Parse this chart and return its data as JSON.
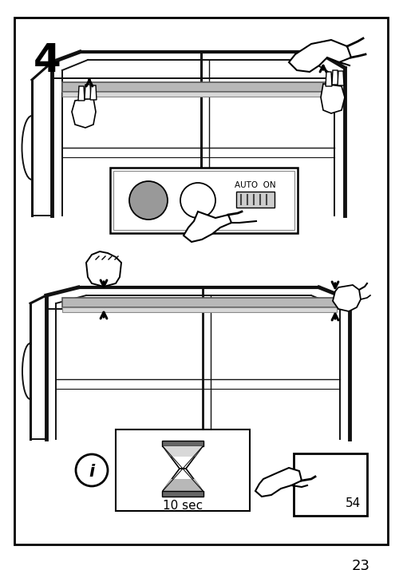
{
  "page_number": "23",
  "step_number": "4",
  "background_color": "#ffffff",
  "border_color": "#000000",
  "auto_on_text": "AUTO  ON",
  "timer_text": "10 sec",
  "page_ref": "54",
  "gray_strip_color": "#b8b8b8",
  "light_gray": "#d8d8d8",
  "sensor_gray": "#999999",
  "dark_gray": "#666666"
}
